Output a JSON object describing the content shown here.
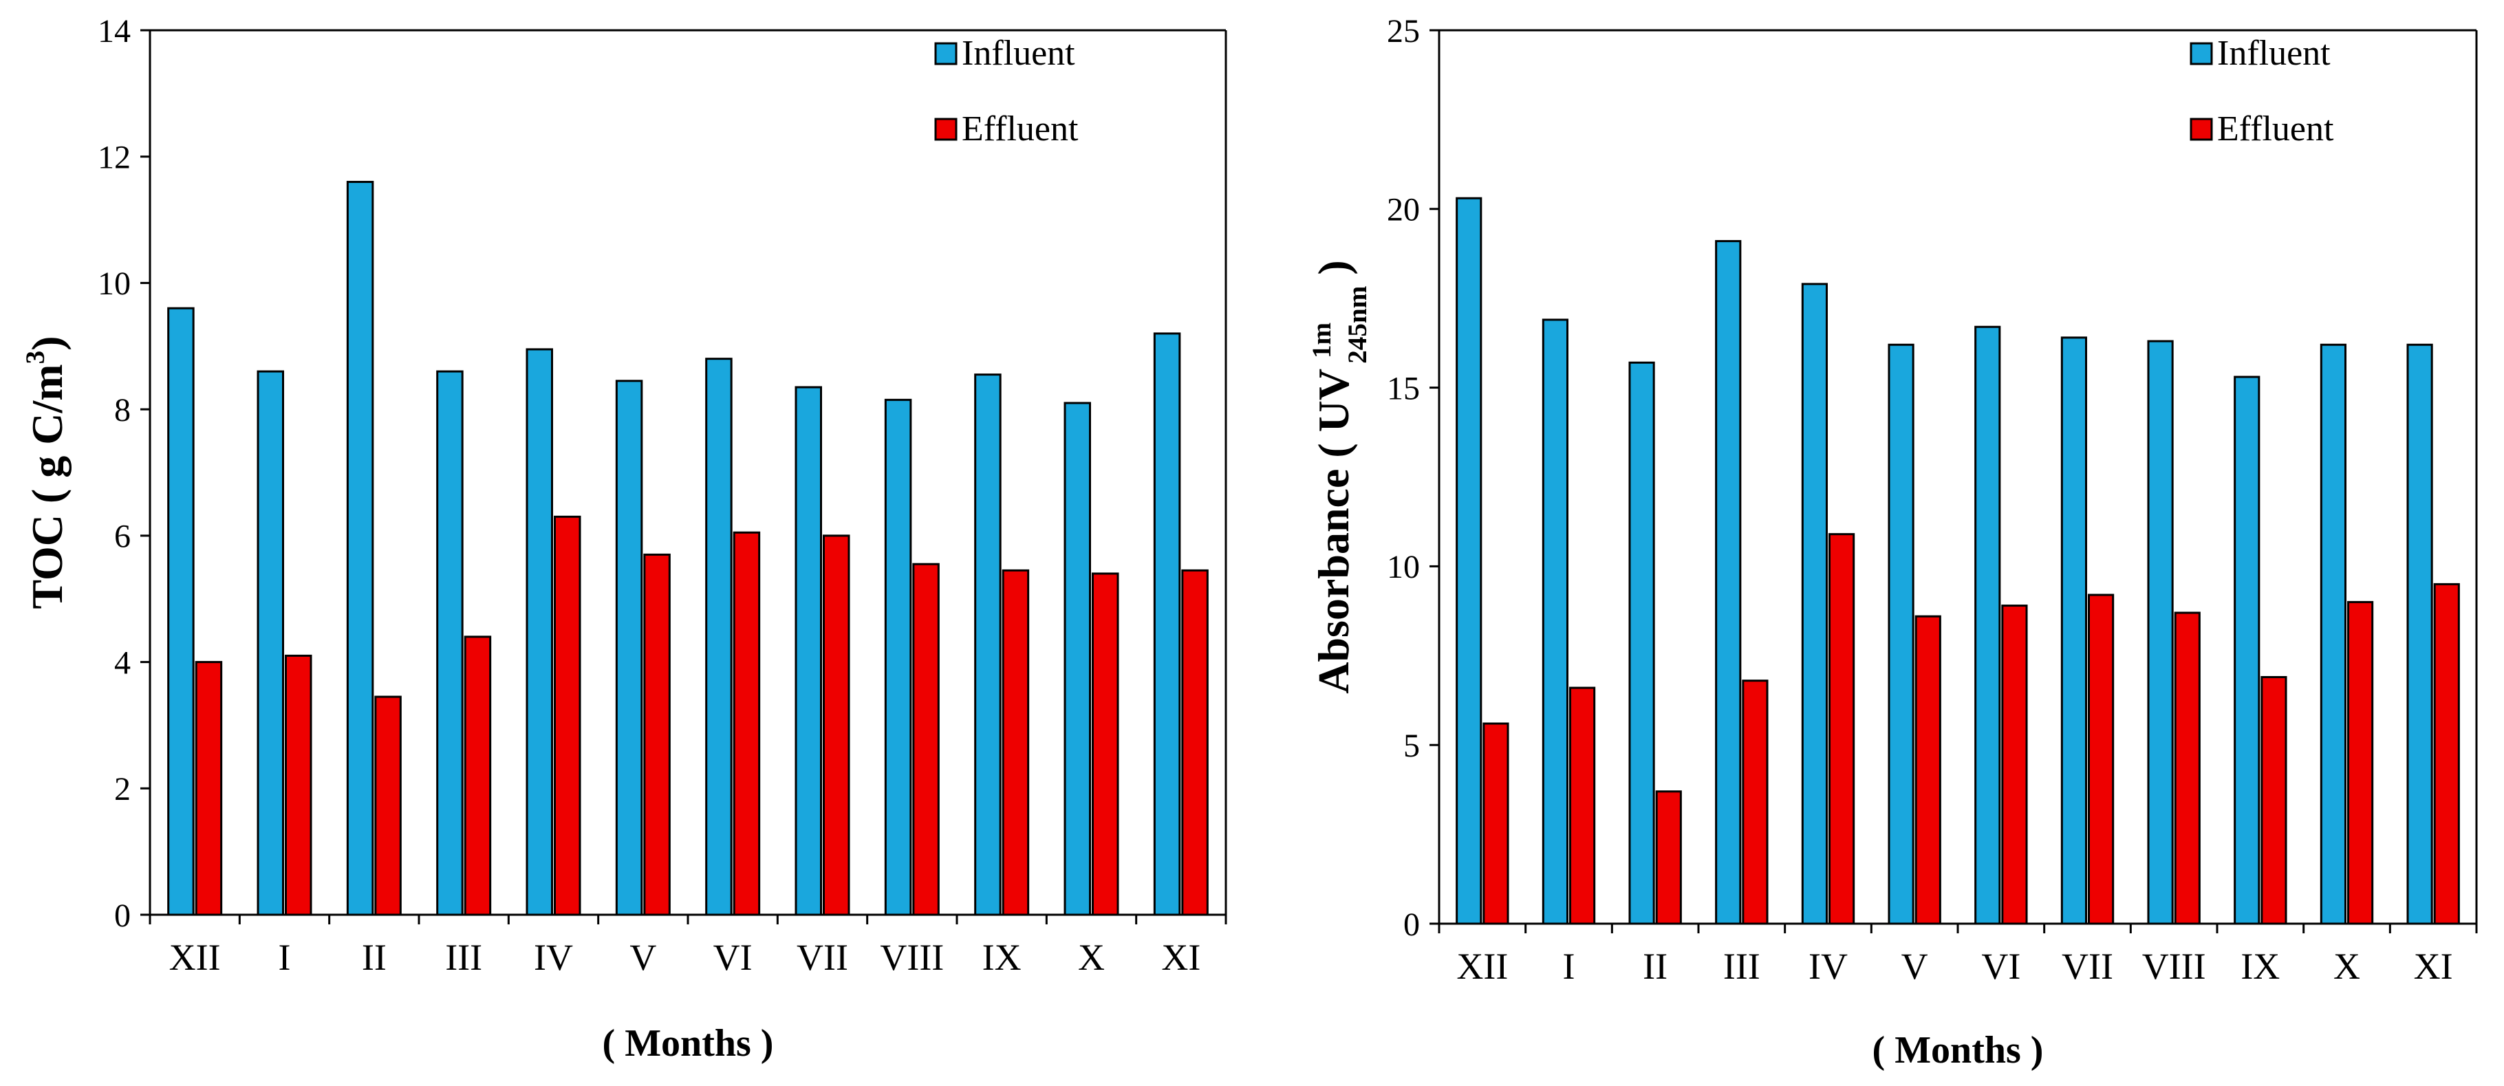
{
  "colors": {
    "influent": "#1aa7dd",
    "effluent": "#ee0000",
    "axis": "#000000",
    "bar_outline": "#000000"
  },
  "chart_data": [
    {
      "type": "bar",
      "categories": [
        "XII",
        "I",
        "II",
        "III",
        "IV",
        "V",
        "VI",
        "VII",
        "VIII",
        "IX",
        "X",
        "XI"
      ],
      "series": [
        {
          "name": "Influent",
          "values": [
            9.6,
            8.6,
            11.6,
            8.6,
            8.95,
            8.45,
            8.8,
            8.35,
            8.15,
            8.55,
            8.1,
            9.2
          ]
        },
        {
          "name": "Effluent",
          "values": [
            4.0,
            4.1,
            3.45,
            4.4,
            6.3,
            5.7,
            6.05,
            6.0,
            5.55,
            5.45,
            5.4,
            5.45
          ]
        }
      ],
      "title": "",
      "xlabel": "( Months )",
      "ylabel": {
        "main": "TOC ( g C/m",
        "sup": "3",
        "close": ")"
      },
      "ylim": [
        0,
        14
      ],
      "yticks": [
        0,
        2,
        4,
        6,
        8,
        10,
        12,
        14
      ],
      "grid": false,
      "legend": "top-right"
    },
    {
      "type": "bar",
      "categories": [
        "XII",
        "I",
        "II",
        "III",
        "IV",
        "V",
        "VI",
        "VII",
        "VIII",
        "IX",
        "X",
        "XI"
      ],
      "series": [
        {
          "name": "Influent",
          "values": [
            20.3,
            16.9,
            15.7,
            19.1,
            17.9,
            16.2,
            16.7,
            16.4,
            16.3,
            15.3,
            16.2,
            16.2
          ]
        },
        {
          "name": "Effluent",
          "values": [
            5.6,
            6.6,
            3.7,
            6.8,
            10.9,
            8.6,
            8.9,
            9.2,
            8.7,
            6.9,
            9.0,
            9.5
          ]
        }
      ],
      "title": "",
      "xlabel": "( Months )",
      "ylabel": {
        "main": "Absorbance ( UV ",
        "sup": "1m",
        "sub": "245nm",
        "close": " )"
      },
      "ylim": [
        0,
        25
      ],
      "yticks": [
        0,
        5,
        10,
        15,
        20,
        25
      ],
      "grid": false,
      "legend": "top-right"
    }
  ]
}
